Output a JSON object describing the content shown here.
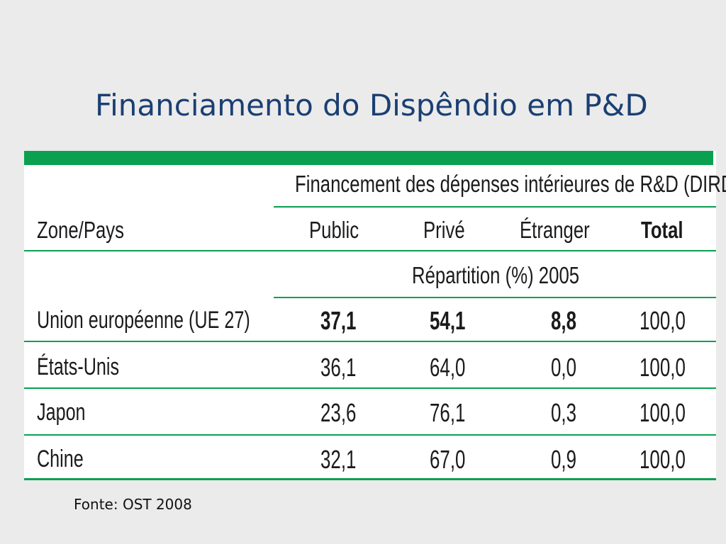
{
  "title": "Financiamento do Dispêndio em P&D",
  "table": {
    "group_header": "Financement des dépenses intérieures de R&D (DIRD)",
    "zone_header": "Zone/Pays",
    "columns": [
      "Public",
      "Privé",
      "Étranger",
      "Total"
    ],
    "subheader": "Répartition (%) 2005",
    "rows": [
      {
        "zone": "Union européenne (UE 27)",
        "values": [
          "37,1",
          "54,1",
          "8,8",
          "100,0"
        ],
        "emphasis": true
      },
      {
        "zone": "États-Unis",
        "values": [
          "36,1",
          "64,0",
          "0,0",
          "100,0"
        ]
      },
      {
        "zone": "Japon",
        "values": [
          "23,6",
          "76,1",
          "0,3",
          "100,0"
        ]
      },
      {
        "zone": "Chine",
        "values": [
          "32,1",
          "67,0",
          "0,9",
          "100,0"
        ]
      }
    ]
  },
  "accent_color": "#0aa050",
  "title_color": "#1a3f73",
  "source": "Fonte: OST 2008"
}
